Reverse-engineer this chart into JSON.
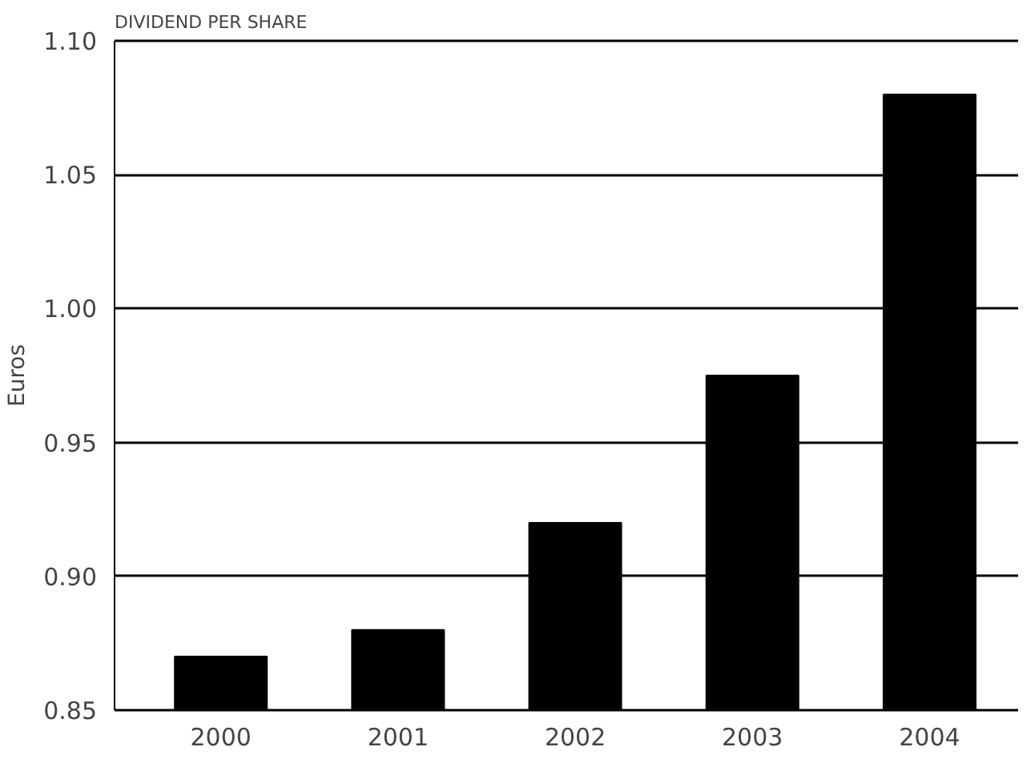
{
  "chart_data": {
    "type": "bar",
    "title": "DIVIDEND PER SHARE",
    "ylabel": "Euros",
    "categories": [
      "2000",
      "2001",
      "2002",
      "2003",
      "2004"
    ],
    "values": [
      0.87,
      0.88,
      0.92,
      0.975,
      1.08
    ],
    "color": "#000000",
    "ylim": [
      0.85,
      1.1
    ],
    "yticks": [
      {
        "value": 0.85,
        "label": "0.85"
      },
      {
        "value": 0.9,
        "label": "0.90"
      },
      {
        "value": 0.95,
        "label": "0.95"
      },
      {
        "value": 1.0,
        "label": "1.00"
      },
      {
        "value": 1.05,
        "label": "1.05"
      },
      {
        "value": 1.1,
        "label": "1.10"
      }
    ],
    "grid": "y"
  }
}
